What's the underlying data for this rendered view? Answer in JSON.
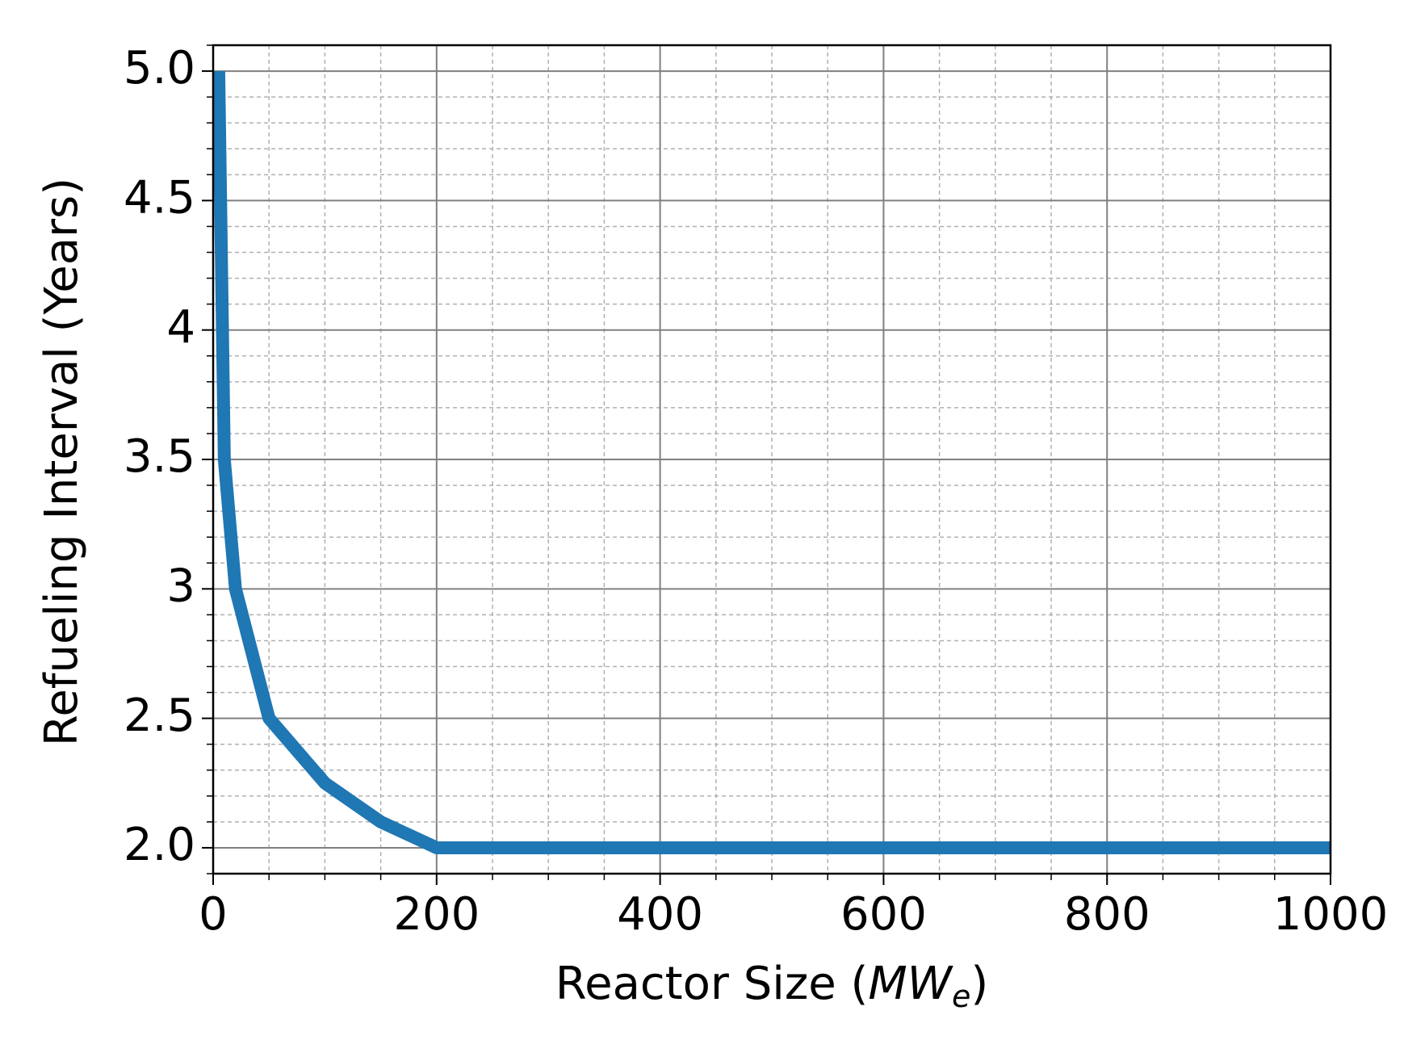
{
  "chart_data": {
    "type": "line",
    "xlabel": [
      "Reactor Size (",
      "MW",
      "e",
      ")"
    ],
    "ylabel": "Refueling Interval (Years)",
    "x": [
      5,
      10,
      20,
      50,
      100,
      150,
      200,
      1000
    ],
    "series": [
      {
        "color": "#1f77b4",
        "values": [
          5.0,
          3.5,
          3.0,
          2.5,
          2.25,
          2.1,
          2.0,
          2.0
        ]
      }
    ],
    "xlim": [
      0,
      1000
    ],
    "xticks": [
      0,
      200,
      400,
      600,
      800,
      1000
    ],
    "ylim": [
      1.9,
      5.1
    ],
    "yticks": [
      {
        "value": 2,
        "label": "2.0"
      },
      2.5,
      3,
      3.5,
      4,
      4.5,
      {
        "value": 5,
        "label": "5.0"
      }
    ],
    "grid": true,
    "minor_divisions": {
      "x": 4,
      "y": 5
    }
  }
}
